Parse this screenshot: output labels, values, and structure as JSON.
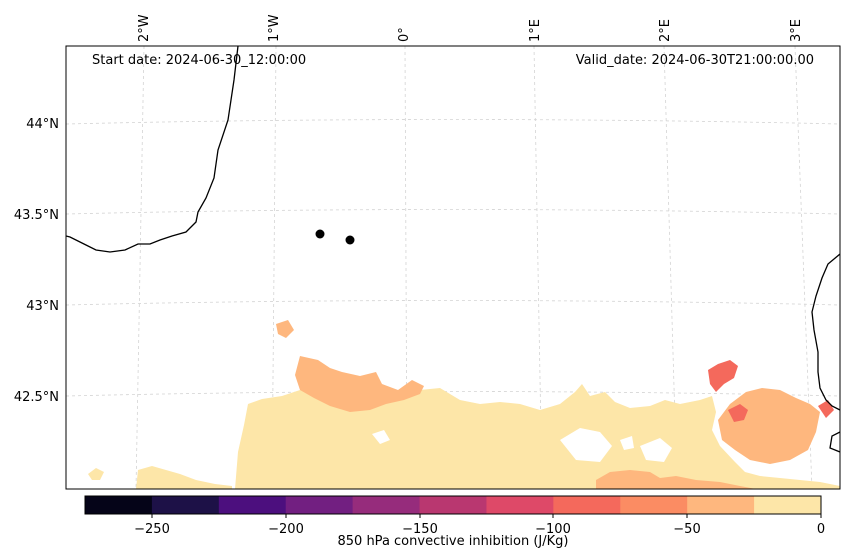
{
  "map": {
    "start_date": "Start date: 2024-06-30_12:00:00",
    "valid_date": "Valid_date: 2024-06-30T21:00:00.00",
    "lon_ticks": [
      "2°W",
      "1°W",
      "0°",
      "1°E",
      "2°E",
      "3°E"
    ],
    "lat_ticks": [
      "44°N",
      "43.5°N",
      "43°N",
      "42.5°N"
    ],
    "markers": [
      "marker-point-1",
      "marker-point-2"
    ]
  },
  "colorbar": {
    "label": "850 hPa convective inhibition (J/Kg)",
    "ticks": [
      "−250",
      "−200",
      "−150",
      "−100",
      "−50",
      "0"
    ],
    "bins": [
      {
        "from": -275,
        "to": -250,
        "color": "#050418"
      },
      {
        "from": -250,
        "to": -225,
        "color": "#1d1147"
      },
      {
        "from": -225,
        "to": -200,
        "color": "#4c0f7e"
      },
      {
        "from": -200,
        "to": -175,
        "color": "#721f81"
      },
      {
        "from": -175,
        "to": -150,
        "color": "#962c7c"
      },
      {
        "from": -150,
        "to": -125,
        "color": "#b93770"
      },
      {
        "from": -125,
        "to": -100,
        "color": "#de4968"
      },
      {
        "from": -100,
        "to": -75,
        "color": "#f4695c"
      },
      {
        "from": -75,
        "to": -50,
        "color": "#fb8c63"
      },
      {
        "from": -50,
        "to": -25,
        "color": "#feb77e"
      },
      {
        "from": -25,
        "to": 0,
        "color": "#fde6a8"
      }
    ]
  },
  "colors": {
    "cin_light": "#fde6a8",
    "cin_mid": "#feb77e",
    "cin_strong": "#f4695c",
    "coast": "#000000",
    "grid": "#d3d3d3"
  }
}
